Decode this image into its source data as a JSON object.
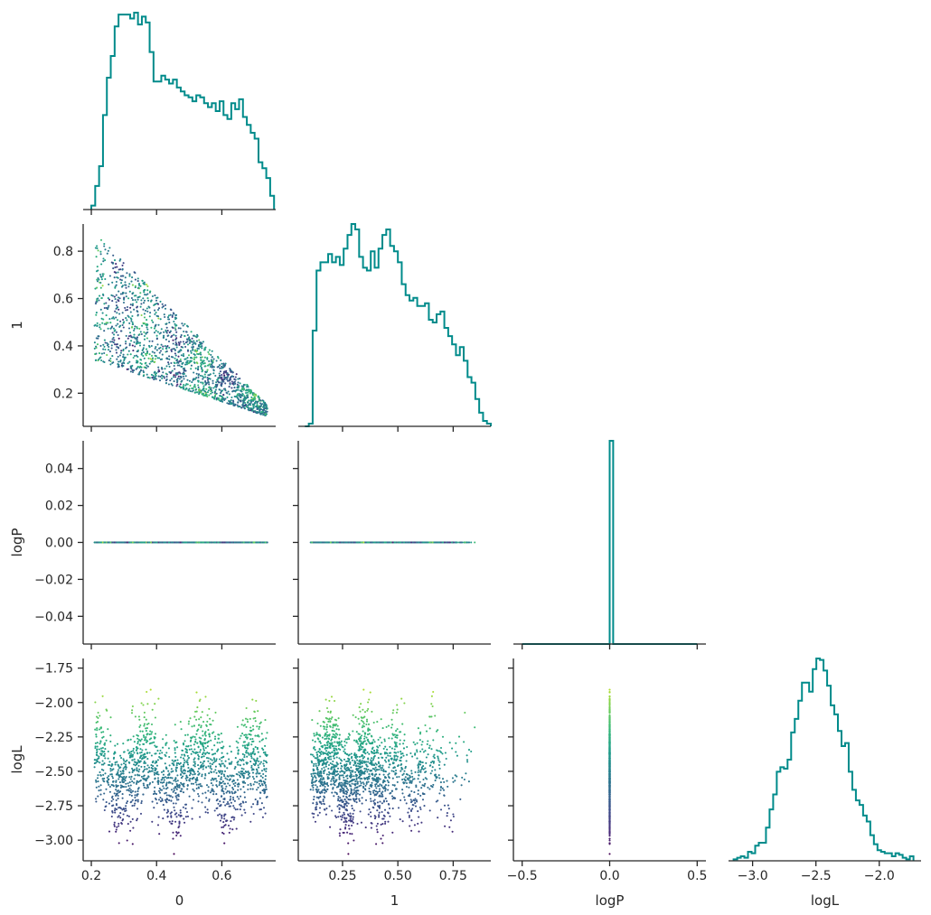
{
  "chart_data": {
    "type": "corner_plot",
    "variables": [
      "0",
      "1",
      "logP",
      "logL"
    ],
    "hist_color": "#008b8b",
    "colormap": "viridis",
    "color_variable": "logL",
    "color_range": [
      -3.1,
      -1.75
    ],
    "grid": false,
    "x_ticks": [
      {
        "values": [
          0.2,
          0.4,
          0.6
        ],
        "labels": [
          "0.2",
          "0.4",
          "0.6"
        ]
      },
      {
        "values": [
          0.25,
          0.5,
          0.75
        ],
        "labels": [
          "0.25",
          "0.50",
          "0.75"
        ]
      },
      {
        "values": [
          -0.5,
          0.0,
          0.5
        ],
        "labels": [
          "−0.5",
          "0.0",
          "0.5"
        ]
      },
      {
        "values": [
          -3.0,
          -2.5,
          -2.0
        ],
        "labels": [
          "−3.0",
          "−2.5",
          "−2.0"
        ]
      }
    ],
    "y_ticks": [
      null,
      {
        "values": [
          0.2,
          0.4,
          0.6,
          0.8
        ],
        "labels": [
          "0.2",
          "0.4",
          "0.6",
          "0.8"
        ]
      },
      {
        "values": [
          -0.04,
          -0.02,
          0.0,
          0.02,
          0.04
        ],
        "labels": [
          "−0.04",
          "−0.02",
          "0.00",
          "0.02",
          "0.04"
        ]
      },
      {
        "values": [
          -3.0,
          -2.75,
          -2.5,
          -2.25,
          -2.0,
          -1.75
        ],
        "labels": [
          "−3.00",
          "−2.75",
          "−2.50",
          "−2.25",
          "−2.00",
          "−1.75"
        ]
      }
    ],
    "histograms": [
      {
        "variable": "0",
        "edges": [
          0.2,
          0.76
        ],
        "counts": [
          2,
          12,
          22,
          48,
          67,
          78,
          93,
          99,
          99,
          99,
          97,
          100,
          94,
          98,
          95,
          80,
          65,
          65,
          68,
          66,
          64,
          66,
          62,
          60,
          58,
          57,
          55,
          58,
          57,
          54,
          52,
          54,
          50,
          55,
          48,
          46,
          54,
          51,
          56,
          47,
          43,
          39,
          36,
          24,
          21,
          16,
          7
        ]
      },
      {
        "variable": "1",
        "edges": [
          0.08,
          0.92
        ],
        "counts": [
          0,
          1,
          35,
          57,
          60,
          60,
          63,
          60,
          62,
          59,
          65,
          70,
          74,
          72,
          62,
          58,
          57,
          64,
          58,
          65,
          70,
          72,
          66,
          64,
          60,
          52,
          48,
          46,
          47,
          44,
          44,
          45,
          39,
          38,
          41,
          42,
          36,
          33,
          30,
          26,
          29,
          24,
          18,
          16,
          10,
          5,
          2,
          1
        ]
      },
      {
        "variable": "logP",
        "edges": [
          -0.5,
          0.5
        ],
        "counts": [
          0,
          0,
          0,
          0,
          0,
          0,
          0,
          0,
          0,
          0,
          0,
          0,
          0,
          0,
          0,
          0,
          0,
          0,
          0,
          0,
          0,
          0,
          0,
          0,
          0,
          1,
          0,
          0,
          0,
          0,
          0,
          0,
          0,
          0,
          0,
          0,
          0,
          0,
          0,
          0,
          0,
          0,
          0,
          0,
          0,
          0,
          0,
          0,
          0,
          0
        ]
      },
      {
        "variable": "logL",
        "edges": [
          -3.15,
          -1.73
        ],
        "counts": [
          1,
          2,
          3,
          2,
          6,
          5,
          10,
          12,
          12,
          22,
          34,
          44,
          59,
          62,
          61,
          67,
          85,
          94,
          106,
          118,
          118,
          112,
          127,
          134,
          133,
          126,
          116,
          103,
          97,
          86,
          76,
          78,
          59,
          47,
          40,
          37,
          30,
          26,
          17,
          11,
          7,
          6,
          5,
          5,
          3,
          5,
          4,
          2,
          1,
          3
        ]
      }
    ],
    "scatter": {
      "n_points": 1600,
      "x0_range": [
        0.21,
        0.74
      ],
      "x1_range": [
        0.09,
        0.88
      ],
      "logP_value": 0.0,
      "logL_range": [
        -3.1,
        -1.75
      ],
      "constraint": "upper bound of 1 decreases from about 0.88 at 0 = 0.21 to about 0.15 at 0 = 0.74"
    }
  }
}
